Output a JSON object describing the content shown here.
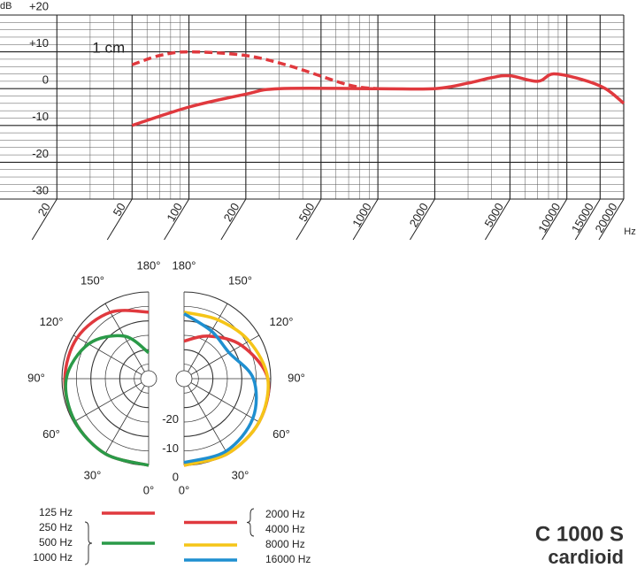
{
  "chart_data": [
    {
      "type": "line",
      "y_label": "dB",
      "x_label": "Hz",
      "xscale": "log",
      "xlim": [
        10,
        20000
      ],
      "ylim": [
        -30,
        20
      ],
      "xticks": [
        20,
        50,
        100,
        200,
        500,
        1000,
        2000,
        5000,
        10000,
        15000,
        20000
      ],
      "yticks": [
        {
          "value": 20,
          "label": "+20"
        },
        {
          "value": 10,
          "label": "+10"
        },
        0,
        -10,
        -20,
        -30
      ],
      "grid": true,
      "minor_grid": true,
      "series": [
        {
          "color": "#e0393e",
          "dash": false,
          "x": [
            50,
            100,
            200,
            300,
            1000,
            2000,
            3000,
            4000,
            5000,
            7000,
            8500,
            12000,
            16000,
            20000
          ],
          "values": [
            -10,
            -5,
            -1.5,
            0,
            0,
            0,
            1.5,
            3,
            3.5,
            2,
            4,
            2.5,
            0,
            -4
          ]
        },
        {
          "name": "1 cm",
          "color": "#e0393e",
          "dash": true,
          "x": [
            50,
            70,
            100,
            200,
            350,
            700,
            1000
          ],
          "values": [
            6.5,
            9,
            10,
            9,
            6,
            1,
            0
          ]
        }
      ]
    },
    {
      "type": "polar",
      "title": "C 1000 S",
      "subtitle": "cardioid",
      "theta": [
        0,
        30,
        60,
        90,
        120,
        150,
        180
      ],
      "angle_ticks": [
        {
          "value": 0,
          "label": "0°"
        },
        {
          "value": 30,
          "label": "30°"
        },
        {
          "value": 60,
          "label": "60°"
        },
        {
          "value": 90,
          "label": "90°"
        },
        {
          "value": 120,
          "label": "120°"
        },
        {
          "value": 150,
          "label": "150°"
        },
        {
          "value": 180,
          "label": "180°"
        }
      ],
      "rlim": [
        -30,
        0
      ],
      "rticks": [
        0,
        -10,
        -20
      ],
      "series": [
        {
          "names": [
            "125 Hz"
          ],
          "side": "left",
          "color": "#e0393e",
          "values": [
            0,
            0,
            -0.5,
            -1,
            -1.5,
            -3.5,
            -7
          ]
        },
        {
          "names": [
            "250 Hz",
            "500 Hz",
            "1000 Hz"
          ],
          "side": "left",
          "color": "#2a9a48",
          "values": [
            0,
            0,
            -0.5,
            -1.5,
            -6,
            -13,
            -21
          ]
        },
        {
          "names": [
            "2000 Hz",
            "4000 Hz"
          ],
          "side": "right",
          "color": "#e0393e",
          "values": [
            0,
            0,
            0,
            -1,
            -7,
            -13,
            -17
          ]
        },
        {
          "names": [
            "8000 Hz"
          ],
          "side": "right",
          "color": "#f5c518",
          "values": [
            0,
            0,
            0,
            -1,
            -4,
            -6.5,
            -7
          ]
        },
        {
          "names": [
            "16000 Hz"
          ],
          "side": "right",
          "color": "#1f8fd0",
          "values": [
            -1,
            -1,
            -2.5,
            -6,
            -12,
            -11,
            -7.5
          ]
        }
      ]
    }
  ]
}
